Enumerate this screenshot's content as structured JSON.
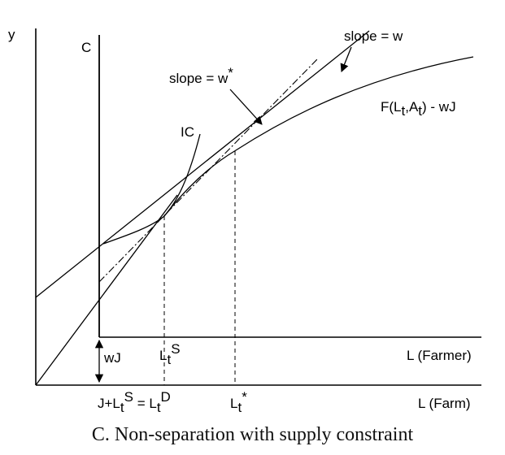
{
  "diagram": {
    "y_axis_label": "y",
    "x_axis_label_farm": "L (Farm)",
    "x_axis_label_farmer": "L (Farmer)",
    "c_line_label": "C",
    "ic_label": "IC",
    "slope_w_label": "slope = w",
    "slope_w_star": {
      "base": "slope = w",
      "sup": "*"
    },
    "production_label": {
      "part1": "F(L",
      "sub1": "t",
      "part2": ",A",
      "sub2": "t",
      "part3": ") - wJ"
    },
    "wj_label": "wJ",
    "lts_label": {
      "base": "L",
      "sub": "t",
      "sup": "S"
    },
    "ltstar_label": {
      "base": "L",
      "sub": "t",
      "sup": "*"
    },
    "bottom_label": {
      "part1": "J+L",
      "sub1": "t",
      "sup1": "S",
      "part2": " = L",
      "sub2": "t",
      "sup2": "D"
    }
  },
  "caption": "C. Non-separation with supply constraint",
  "colors": {
    "line": "#000000",
    "background": "#ffffff"
  }
}
